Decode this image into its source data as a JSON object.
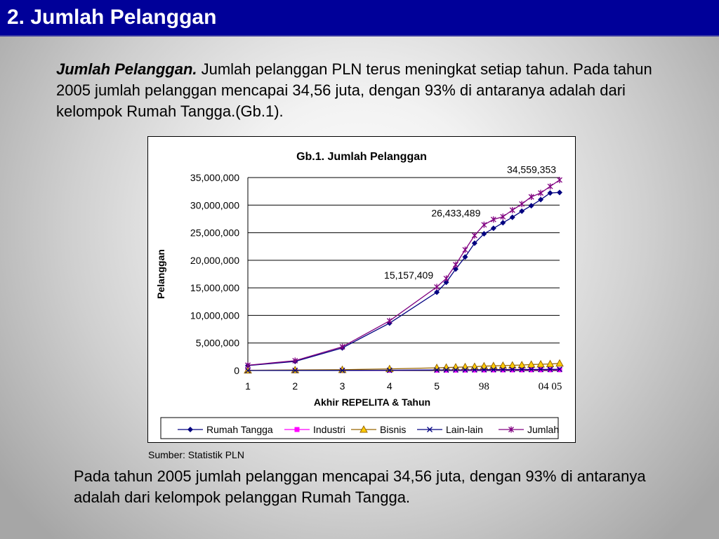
{
  "slide": {
    "title": "2. Jumlah Pelanggan",
    "intro_bold": "Jumlah Pelanggan.",
    "intro_text": " Jumlah pelanggan PLN terus meningkat setiap tahun. Pada tahun 2005 jumlah pelanggan mencapai 34,56 juta, dengan 93% di antaranya adalah dari kelompok Rumah Tangga.(Gb.1).",
    "source": "Sumber: Statistik PLN",
    "summary": "Pada tahun 2005 jumlah pelanggan mencapai 34,56 juta, dengan 93% di antaranya adalah dari kelompok pelanggan Rumah Tangga."
  },
  "chart_data": {
    "type": "line",
    "title": "Gb.1. Jumlah Pelanggan",
    "xlabel": "Akhir REPELITA & Tahun",
    "ylabel": "Pelanggan",
    "ylim": [
      0,
      35000000
    ],
    "yticks": [
      0,
      5000000,
      10000000,
      15000000,
      20000000,
      25000000,
      30000000,
      35000000
    ],
    "ytick_labels": [
      "0",
      "5,000,000",
      "10,000,000",
      "15,000,000",
      "20,000,000",
      "25,000,000",
      "30,000,000",
      "35,000,000"
    ],
    "x_tick_labels": [
      "1",
      "2",
      "3",
      "4",
      "5",
      "98",
      "04 05"
    ],
    "x": [
      "1",
      "2",
      "3",
      "4",
      "5",
      "5.2",
      "5.4",
      "5.6",
      "5.8",
      "6.0",
      "6.2",
      "6.4",
      "6.6",
      "6.8",
      "7.0",
      "7.2",
      "7.4",
      "7.6"
    ],
    "legend_position": "bottom",
    "grid": true,
    "series": [
      {
        "name": "Rumah Tangga",
        "color": "#000080",
        "marker": "diamond",
        "values": [
          900000,
          1650000,
          4100000,
          8600000,
          14200000,
          16000000,
          18400000,
          20600000,
          23100000,
          24800000,
          25800000,
          26800000,
          27800000,
          28900000,
          29900000,
          31000000,
          32200000,
          32300000
        ]
      },
      {
        "name": "Industri",
        "color": "#ff00ff",
        "marker": "square",
        "values": [
          10000,
          20000,
          30000,
          50000,
          70000,
          75000,
          80000,
          90000,
          100000,
          110000,
          115000,
          120000,
          125000,
          130000,
          135000,
          140000,
          145000,
          150000
        ]
      },
      {
        "name": "Bisnis",
        "color": "#996600",
        "marker": "triangle",
        "values": [
          50000,
          100000,
          150000,
          300000,
          500000,
          550000,
          600000,
          650000,
          700000,
          800000,
          850000,
          900000,
          950000,
          1000000,
          1100000,
          1150000,
          1200000,
          1300000
        ]
      },
      {
        "name": "Lain-lain",
        "color": "#000080",
        "marker": "x",
        "values": [
          10000,
          20000,
          30000,
          60000,
          100000,
          110000,
          120000,
          130000,
          140000,
          150000,
          160000,
          170000,
          180000,
          190000,
          200000,
          210000,
          220000,
          240000
        ]
      },
      {
        "name": "Jumlah",
        "color": "#800080",
        "marker": "star",
        "values": [
          970000,
          1790000,
          4310000,
          9010000,
          15157409,
          16700000,
          19200000,
          21900000,
          24500000,
          26433489,
          27400000,
          27900000,
          29100000,
          30200000,
          31500000,
          32200000,
          33400000,
          34559353
        ]
      }
    ],
    "annotations": [
      {
        "text": "15,157,409",
        "series": "Jumlah",
        "x": "5"
      },
      {
        "text": "26,433,489",
        "series": "Jumlah",
        "x": "6.0"
      },
      {
        "text": "34,559,353",
        "series": "Jumlah",
        "x": "7.6"
      }
    ]
  }
}
